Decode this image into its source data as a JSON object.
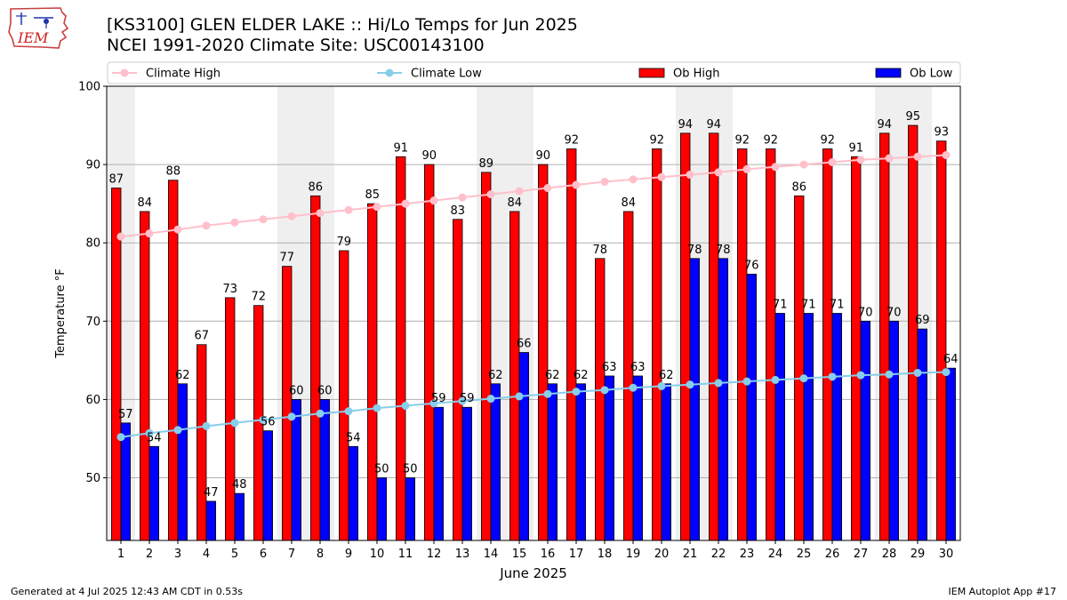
{
  "title": "[KS3100] GLEN ELDER LAKE :: Hi/Lo Temps for Jun 2025",
  "subtitle": "NCEI 1991-2020 Climate Site: USC00143100",
  "logo_text": "IEM",
  "footer_left": "Generated at 4 Jul 2025 12:43 AM CDT in 0.53s",
  "footer_right": "IEM Autoplot App #17",
  "chart_data": {
    "type": "bar",
    "xlabel": "June 2025",
    "ylabel": "Temperature °F",
    "ylim": [
      42,
      100
    ],
    "yticks": [
      50,
      60,
      70,
      80,
      90,
      100
    ],
    "grid": true,
    "legend_position": "top",
    "weekend_shading_days": [
      1,
      7,
      8,
      14,
      15,
      21,
      22,
      28,
      29
    ],
    "categories": [
      "1",
      "2",
      "3",
      "4",
      "5",
      "6",
      "7",
      "8",
      "9",
      "10",
      "11",
      "12",
      "13",
      "14",
      "15",
      "16",
      "17",
      "18",
      "19",
      "20",
      "21",
      "22",
      "23",
      "24",
      "25",
      "26",
      "27",
      "28",
      "29",
      "30"
    ],
    "series": [
      {
        "name": "Ob High",
        "kind": "bar",
        "color": "#ff0000",
        "values": [
          87,
          84,
          88,
          67,
          73,
          72,
          77,
          86,
          79,
          85,
          91,
          90,
          83,
          89,
          84,
          90,
          92,
          78,
          84,
          92,
          94,
          94,
          92,
          92,
          86,
          92,
          91,
          94,
          95,
          93
        ]
      },
      {
        "name": "Ob Low",
        "kind": "bar",
        "color": "#0000ff",
        "values": [
          57,
          54,
          62,
          47,
          48,
          56,
          60,
          60,
          54,
          50,
          50,
          59,
          59,
          62,
          66,
          62,
          62,
          63,
          63,
          62,
          78,
          78,
          76,
          71,
          71,
          71,
          70,
          70,
          69,
          64
        ]
      },
      {
        "name": "Climate High",
        "kind": "line",
        "color": "#ffc0cb",
        "values": [
          80.8,
          81.2,
          81.7,
          82.2,
          82.6,
          83.0,
          83.4,
          83.8,
          84.2,
          84.6,
          85.0,
          85.4,
          85.8,
          86.2,
          86.6,
          87.0,
          87.4,
          87.8,
          88.1,
          88.4,
          88.7,
          89.0,
          89.4,
          89.7,
          90.0,
          90.3,
          90.6,
          90.8,
          91.0,
          91.2
        ]
      },
      {
        "name": "Climate Low",
        "kind": "line",
        "color": "#87ceeb",
        "values": [
          55.2,
          55.7,
          56.1,
          56.6,
          57.0,
          57.4,
          57.8,
          58.2,
          58.5,
          58.9,
          59.2,
          59.5,
          59.8,
          60.1,
          60.4,
          60.7,
          61.0,
          61.2,
          61.5,
          61.7,
          61.9,
          62.1,
          62.3,
          62.5,
          62.7,
          62.9,
          63.1,
          63.2,
          63.4,
          63.5
        ]
      }
    ]
  }
}
